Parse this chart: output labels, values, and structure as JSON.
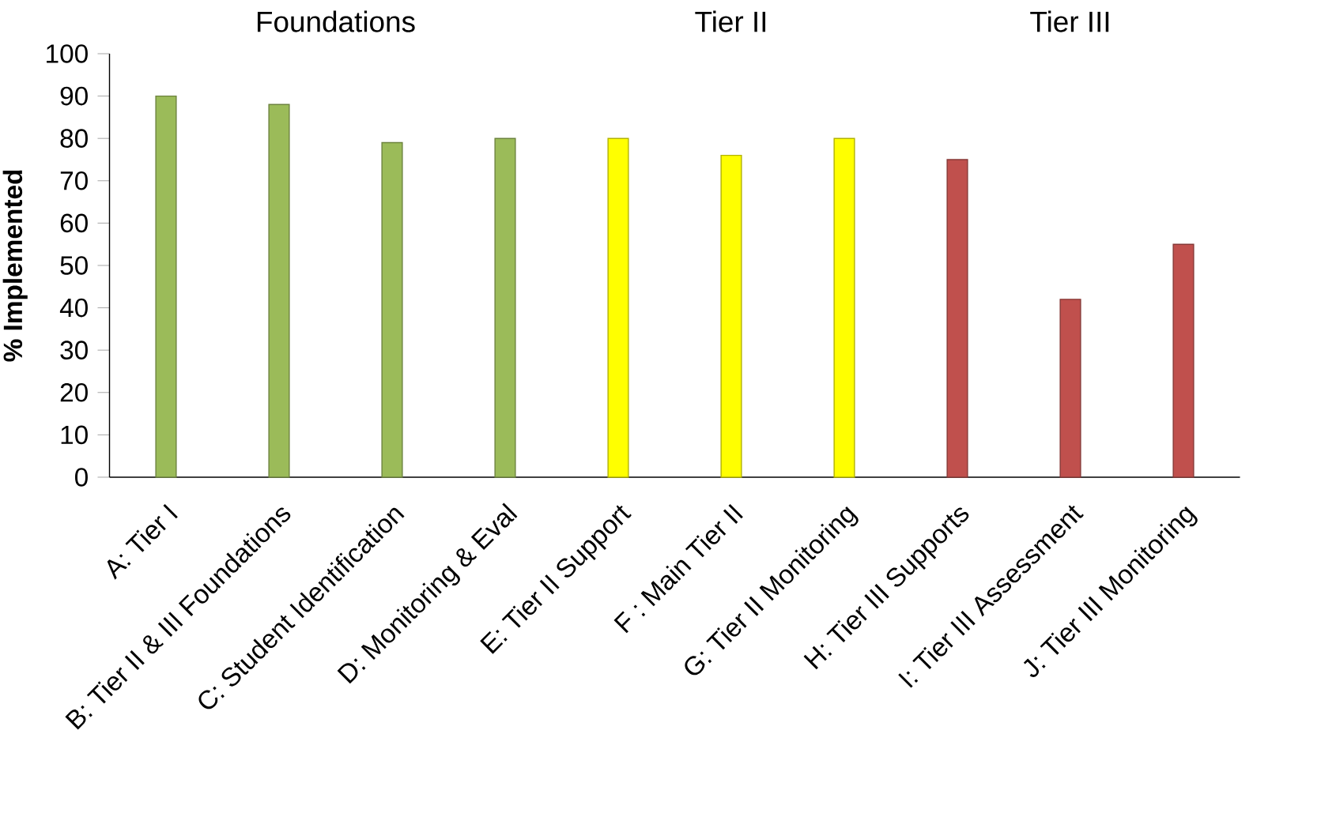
{
  "chart_data": {
    "type": "bar",
    "ylabel": "% Implemented",
    "categories": [
      "A: Tier I",
      "B: Tier II & III Foundations",
      "C: Student Identification",
      "D: Monitoring & Eval",
      "E: Tier II Support",
      "F : Main Tier II",
      "G: Tier II Monitoring",
      "H: Tier III Supports",
      "I: Tier III Assessment",
      "J: Tier III Monitoring"
    ],
    "values": [
      90,
      88,
      79,
      80,
      80,
      76,
      80,
      75,
      42,
      55
    ],
    "colors": [
      "#9bbb59",
      "#9bbb59",
      "#9bbb59",
      "#9bbb59",
      "#ffff00",
      "#ffff00",
      "#ffff00",
      "#c0504d",
      "#c0504d",
      "#c0504d"
    ],
    "ylim": [
      0,
      100
    ],
    "yticks": [
      0,
      10,
      20,
      30,
      40,
      50,
      60,
      70,
      80,
      90,
      100
    ],
    "annotations": [
      "Foundations",
      "Tier II",
      "Tier III"
    ]
  }
}
